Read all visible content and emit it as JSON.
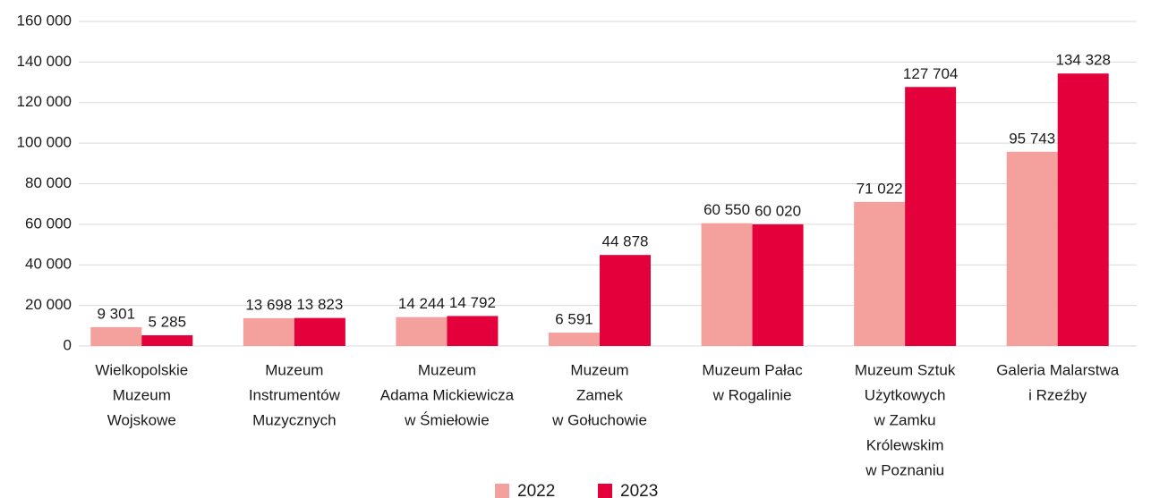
{
  "chart_data": {
    "type": "bar",
    "categories": [
      [
        "Wielkopolskie",
        "Muzeum",
        "Wojskowe"
      ],
      [
        "Muzeum",
        "Instrumentów",
        "Muzycznych"
      ],
      [
        "Muzeum",
        "Adama Mickiewicza",
        "w Śmiełowie"
      ],
      [
        "Muzeum",
        "Zamek",
        "w Gołuchowie"
      ],
      [
        "Muzeum Pałac",
        "w Rogalinie"
      ],
      [
        "Muzeum Sztuk",
        "Użytkowych",
        "w Zamku",
        "Królewskim",
        "w Poznaniu"
      ],
      [
        "Galeria Malarstwa",
        "i Rzeźby"
      ]
    ],
    "series": [
      {
        "name": "2022",
        "color": "#f4a09c",
        "values": [
          9301,
          13698,
          14244,
          6591,
          60550,
          71022,
          95743
        ],
        "value_labels": [
          "9 301",
          "13 698",
          "14 244",
          "6 591",
          "60 550",
          "71 022",
          "95 743"
        ]
      },
      {
        "name": "2023",
        "color": "#e4003a",
        "values": [
          5285,
          13823,
          14792,
          44878,
          60020,
          127704,
          134328
        ],
        "value_labels": [
          "5 285",
          "13 823",
          "14 792",
          "44 878",
          "60 020",
          "127 704",
          "134 328"
        ]
      }
    ],
    "ylim": [
      0,
      160000
    ],
    "yticks": [
      0,
      {
        "value": 20000,
        "label": "20 000"
      },
      {
        "value": 40000,
        "label": "40 000"
      },
      {
        "value": 60000,
        "label": "60 000"
      },
      {
        "value": 80000,
        "label": "80 000"
      },
      {
        "value": 100000,
        "label": "100 000"
      },
      {
        "value": 120000,
        "label": "120 000"
      },
      {
        "value": 140000,
        "label": "140 000"
      },
      {
        "value": 160000,
        "label": "160 000"
      }
    ],
    "grid": true,
    "legend": "bottom"
  }
}
